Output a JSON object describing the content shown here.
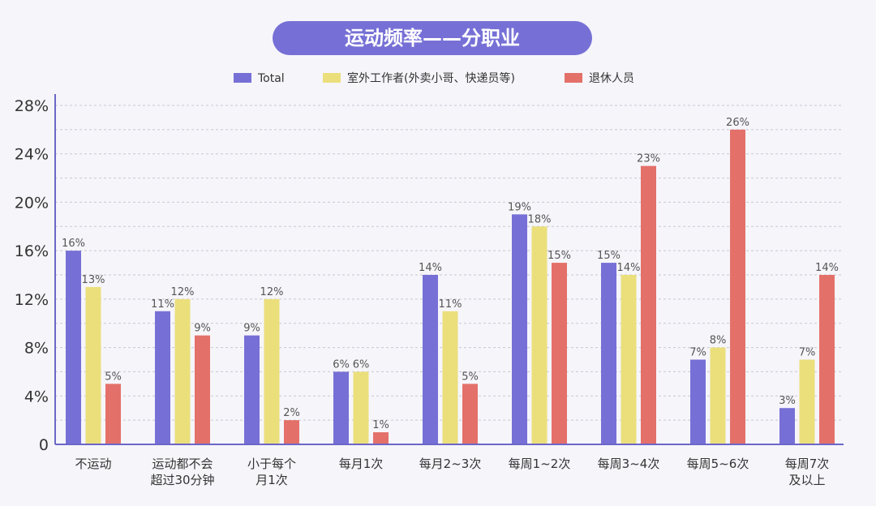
{
  "chart_data": {
    "type": "bar",
    "title": "运动频率——分职业",
    "categories": [
      [
        "不运动"
      ],
      [
        "运动都不会",
        "超过30分钟"
      ],
      [
        "小于每个",
        "月1次"
      ],
      [
        "每月1次"
      ],
      [
        "每月2~3次"
      ],
      [
        "每周1~2次"
      ],
      [
        "每周3~4次"
      ],
      [
        "每周5~6次"
      ],
      [
        "每周7次",
        "及以上"
      ]
    ],
    "series": [
      {
        "name": "Total",
        "color": "#7670d6",
        "values": [
          16,
          11,
          9,
          6,
          14,
          19,
          15,
          7,
          3
        ]
      },
      {
        "name": "室外工作者(外卖小哥、快递员等)",
        "color": "#ebdf7c",
        "values": [
          13,
          12,
          12,
          6,
          11,
          18,
          14,
          8,
          7
        ]
      },
      {
        "name": "退休人员",
        "color": "#e4706a",
        "values": [
          5,
          9,
          2,
          1,
          5,
          15,
          23,
          26,
          14
        ]
      }
    ],
    "ylim": [
      0,
      28
    ],
    "yticks": [
      0,
      4,
      8,
      12,
      16,
      20,
      24,
      28
    ],
    "ytick_format": "{v}%",
    "value_label_format": "{v}%",
    "grid": true,
    "legend": "top-center",
    "xlabel": "",
    "ylabel": ""
  },
  "colors": {
    "title_pill": "#7670d6",
    "axis": "#6b66c8",
    "grid": "#c8c8d2"
  }
}
